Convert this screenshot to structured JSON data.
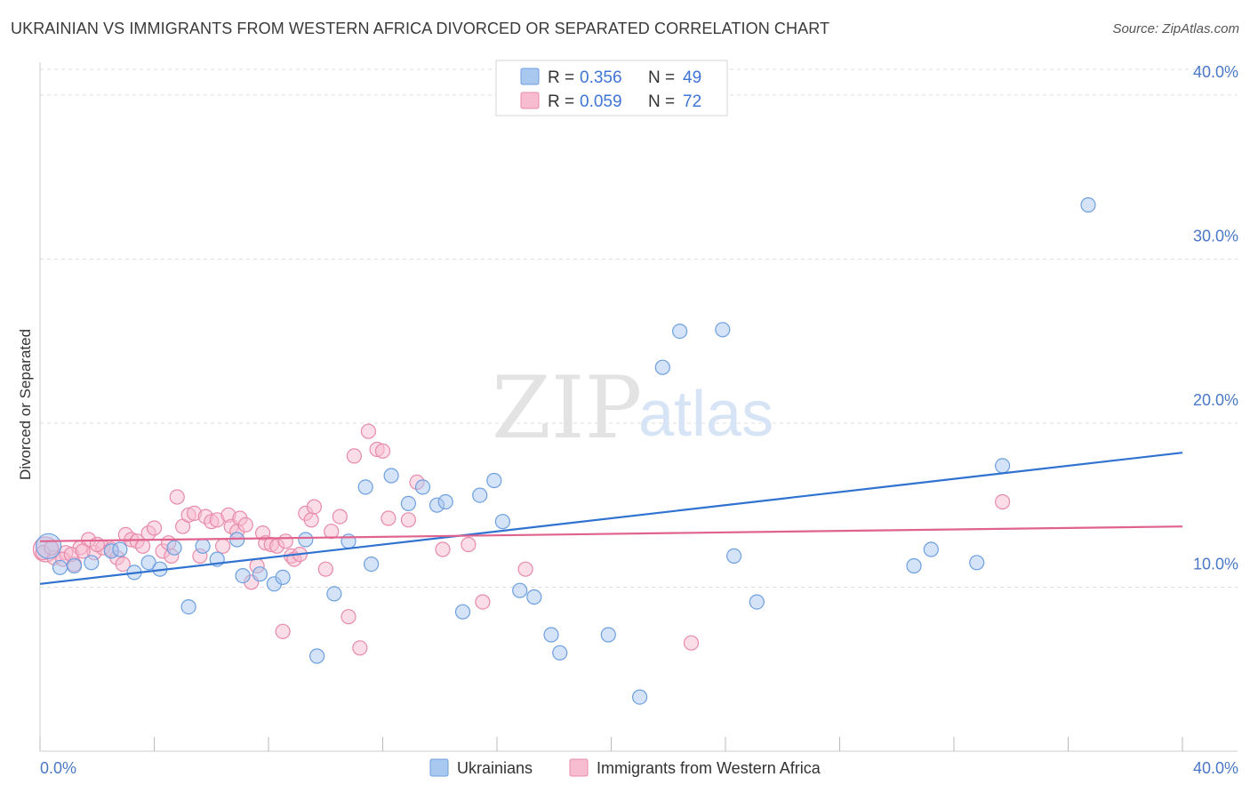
{
  "title": "UKRAINIAN VS IMMIGRANTS FROM WESTERN AFRICA DIVORCED OR SEPARATED CORRELATION CHART",
  "source": "Source: ZipAtlas.com",
  "watermark": {
    "zip": "ZIP",
    "atlas": "atlas"
  },
  "colors": {
    "blue_fill": "#a9c8f0",
    "blue_stroke": "#6d9fdf",
    "blue_line": "#2f72d0",
    "pink_fill": "#f7bcd0",
    "pink_stroke": "#e88aaa",
    "pink_line": "#e0628f",
    "grid": "#dddddd",
    "axis_text": "#4a78c6"
  },
  "legend": {
    "rows": [
      {
        "r_label": "R =",
        "r_value": "0.356",
        "n_label": "N =",
        "n_value": "49"
      },
      {
        "r_label": "R =",
        "r_value": "0.059",
        "n_label": "N =",
        "n_value": "72"
      }
    ]
  },
  "bottom_legend": {
    "series1": "Ukrainians",
    "series2": "Immigrants from Western Africa"
  },
  "chart_data": {
    "type": "scatter",
    "title": "UKRAINIAN VS IMMIGRANTS FROM WESTERN AFRICA DIVORCED OR SEPARATED CORRELATION CHART",
    "xlabel": "",
    "ylabel": "Divorced or Separated",
    "xlim": [
      0,
      40
    ],
    "ylim": [
      0,
      42
    ],
    "x_tick_labels": [
      "0.0%",
      "40.0%"
    ],
    "y_ticks": [
      10,
      20,
      30,
      40
    ],
    "y_tick_labels": [
      "10.0%",
      "20.0%",
      "30.0%",
      "40.0%"
    ],
    "grid": true,
    "legend_position": "top-center",
    "series": [
      {
        "name": "Ukrainians",
        "color": "#a9c8f0",
        "r": 0.356,
        "n": 49,
        "trend": {
          "x": [
            0,
            40
          ],
          "y": [
            10.2,
            18.2
          ]
        },
        "points": [
          [
            0.3,
            12.5
          ],
          [
            0.7,
            11.2
          ],
          [
            1.2,
            11.3
          ],
          [
            1.8,
            11.5
          ],
          [
            2.5,
            12.2
          ],
          [
            2.8,
            12.3
          ],
          [
            3.3,
            10.9
          ],
          [
            3.8,
            11.5
          ],
          [
            4.2,
            11.1
          ],
          [
            4.7,
            12.4
          ],
          [
            5.2,
            8.8
          ],
          [
            5.7,
            12.5
          ],
          [
            6.2,
            11.7
          ],
          [
            6.9,
            12.9
          ],
          [
            7.1,
            10.7
          ],
          [
            7.7,
            10.8
          ],
          [
            8.2,
            10.2
          ],
          [
            8.5,
            10.6
          ],
          [
            9.3,
            12.9
          ],
          [
            9.7,
            5.8
          ],
          [
            10.3,
            9.6
          ],
          [
            10.8,
            12.8
          ],
          [
            11.4,
            16.1
          ],
          [
            11.6,
            11.4
          ],
          [
            12.3,
            16.8
          ],
          [
            12.9,
            15.1
          ],
          [
            13.4,
            16.1
          ],
          [
            13.9,
            15.0
          ],
          [
            14.2,
            15.2
          ],
          [
            14.8,
            8.5
          ],
          [
            15.4,
            15.6
          ],
          [
            15.9,
            16.5
          ],
          [
            16.2,
            14.0
          ],
          [
            16.8,
            9.8
          ],
          [
            17.3,
            9.4
          ],
          [
            17.9,
            7.1
          ],
          [
            18.2,
            6.0
          ],
          [
            19.9,
            7.1
          ],
          [
            21.0,
            3.3
          ],
          [
            21.8,
            23.4
          ],
          [
            22.4,
            25.6
          ],
          [
            23.9,
            25.7
          ],
          [
            24.3,
            11.9
          ],
          [
            25.1,
            9.1
          ],
          [
            30.6,
            11.3
          ],
          [
            31.2,
            12.3
          ],
          [
            32.8,
            11.5
          ],
          [
            33.7,
            17.4
          ],
          [
            36.7,
            33.3
          ]
        ]
      },
      {
        "name": "Immigrants from Western Africa",
        "color": "#f7bcd0",
        "r": 0.059,
        "n": 72,
        "trend": {
          "x": [
            0,
            40
          ],
          "y": [
            12.8,
            13.7
          ]
        },
        "points": [
          [
            0.2,
            12.3
          ],
          [
            0.5,
            11.8
          ],
          [
            0.9,
            12.1
          ],
          [
            1.2,
            11.4
          ],
          [
            1.4,
            12.4
          ],
          [
            1.7,
            12.9
          ],
          [
            1.9,
            12.1
          ],
          [
            2.2,
            12.4
          ],
          [
            2.5,
            12.3
          ],
          [
            2.7,
            11.8
          ],
          [
            2.9,
            11.4
          ],
          [
            3.0,
            13.2
          ],
          [
            3.2,
            12.9
          ],
          [
            3.4,
            12.8
          ],
          [
            3.6,
            12.5
          ],
          [
            3.8,
            13.3
          ],
          [
            4.0,
            13.6
          ],
          [
            4.3,
            12.2
          ],
          [
            4.5,
            12.7
          ],
          [
            4.6,
            11.9
          ],
          [
            4.8,
            15.5
          ],
          [
            5.0,
            13.7
          ],
          [
            5.2,
            14.4
          ],
          [
            5.4,
            14.5
          ],
          [
            5.6,
            11.9
          ],
          [
            5.8,
            14.3
          ],
          [
            6.0,
            14.0
          ],
          [
            6.2,
            14.1
          ],
          [
            6.4,
            12.5
          ],
          [
            6.6,
            14.4
          ],
          [
            6.7,
            13.7
          ],
          [
            6.9,
            13.4
          ],
          [
            7.0,
            14.2
          ],
          [
            7.2,
            13.8
          ],
          [
            7.4,
            10.3
          ],
          [
            7.6,
            11.3
          ],
          [
            7.8,
            13.3
          ],
          [
            7.9,
            12.7
          ],
          [
            8.1,
            12.6
          ],
          [
            8.3,
            12.5
          ],
          [
            8.5,
            7.3
          ],
          [
            8.6,
            12.8
          ],
          [
            8.8,
            11.9
          ],
          [
            8.9,
            11.7
          ],
          [
            9.1,
            12.0
          ],
          [
            9.3,
            14.5
          ],
          [
            9.5,
            14.1
          ],
          [
            9.6,
            14.9
          ],
          [
            10.0,
            11.1
          ],
          [
            10.2,
            13.4
          ],
          [
            10.5,
            14.3
          ],
          [
            10.8,
            8.2
          ],
          [
            11.0,
            18.0
          ],
          [
            11.2,
            6.3
          ],
          [
            11.5,
            19.5
          ],
          [
            11.8,
            18.4
          ],
          [
            12.0,
            18.3
          ],
          [
            12.2,
            14.2
          ],
          [
            12.9,
            14.1
          ],
          [
            13.2,
            16.4
          ],
          [
            14.1,
            12.3
          ],
          [
            15.0,
            12.6
          ],
          [
            15.5,
            9.1
          ],
          [
            17.0,
            11.1
          ],
          [
            22.8,
            6.6
          ],
          [
            33.7,
            15.2
          ],
          [
            0.1,
            12.1
          ],
          [
            0.4,
            12.4
          ],
          [
            0.8,
            11.7
          ],
          [
            1.1,
            12.0
          ],
          [
            1.5,
            12.2
          ],
          [
            2.0,
            12.6
          ]
        ]
      }
    ]
  }
}
